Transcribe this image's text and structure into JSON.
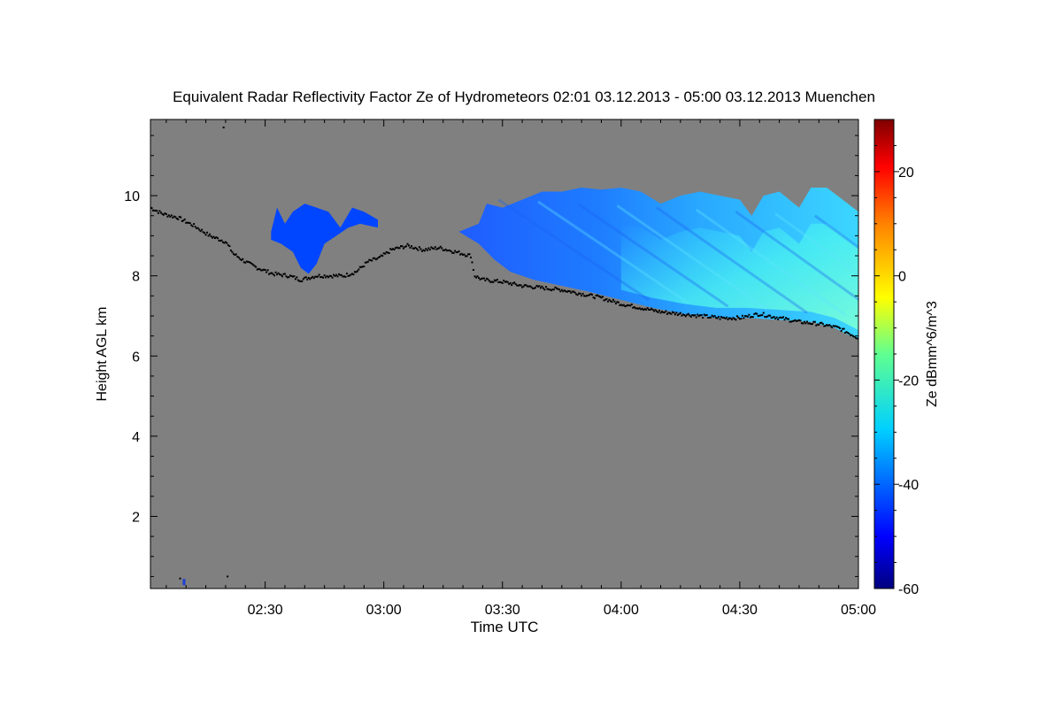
{
  "chart_data": {
    "type": "heatmap",
    "title": "Equivalent Radar Reflectivity Factor Ze of Hydrometeors   02:01 03.12.2013 - 05:00 03.12.2013 Muenchen",
    "xlabel": "Time UTC",
    "ylabel": "Height AGL km",
    "xlim_minutes_utc": [
      121,
      300
    ],
    "ylim_km": [
      0.2,
      11.9
    ],
    "x_ticks": [
      {
        "minutes": 150,
        "label": "02:30"
      },
      {
        "minutes": 180,
        "label": "03:00"
      },
      {
        "minutes": 210,
        "label": "03:30"
      },
      {
        "minutes": 240,
        "label": "04:00"
      },
      {
        "minutes": 270,
        "label": "04:30"
      },
      {
        "minutes": 300,
        "label": "05:00"
      }
    ],
    "y_ticks": [
      {
        "value": 2,
        "label": "2"
      },
      {
        "value": 4,
        "label": "4"
      },
      {
        "value": 6,
        "label": "6"
      },
      {
        "value": 8,
        "label": "8"
      },
      {
        "value": 10,
        "label": "10"
      }
    ],
    "background_color": "#808080",
    "colorbar": {
      "label": "Ze dBmm^6/m^3",
      "range": [
        -60,
        30
      ],
      "ticks": [
        {
          "value": 20,
          "label": "20"
        },
        {
          "value": 0,
          "label": "0"
        },
        {
          "value": -20,
          "label": "-20"
        },
        {
          "value": -40,
          "label": "-40"
        },
        {
          "value": -60,
          "label": "-60"
        }
      ]
    },
    "cloud_regions": [
      {
        "name": "early-cloud-patch",
        "start_min": 151.5,
        "end_min": 178.5,
        "top_km": [
          [
            151.5,
            9.1
          ],
          [
            153,
            9.7
          ],
          [
            155,
            9.3
          ],
          [
            157,
            9.6
          ],
          [
            160,
            9.8
          ],
          [
            163,
            9.7
          ],
          [
            166,
            9.6
          ],
          [
            169,
            9.2
          ],
          [
            172,
            9.7
          ],
          [
            175,
            9.6
          ],
          [
            178.5,
            9.4
          ]
        ],
        "base_km": [
          [
            151.5,
            8.9
          ],
          [
            154,
            8.8
          ],
          [
            157,
            8.6
          ],
          [
            159,
            8.2
          ],
          [
            161,
            8.05
          ],
          [
            163,
            8.3
          ],
          [
            165,
            8.8
          ],
          [
            168,
            9.0
          ],
          [
            171,
            9.2
          ],
          [
            174,
            9.3
          ],
          [
            178.5,
            9.2
          ]
        ],
        "ze_dbz": -43
      },
      {
        "name": "main-cirrus-band",
        "start_min": 199,
        "end_min": 300,
        "top_km": [
          [
            199,
            9.1
          ],
          [
            204,
            9.3
          ],
          [
            206,
            9.8
          ],
          [
            210,
            9.7
          ],
          [
            215,
            9.9
          ],
          [
            220,
            10.1
          ],
          [
            225,
            10.1
          ],
          [
            230,
            10.2
          ],
          [
            235,
            10.15
          ],
          [
            240,
            10.2
          ],
          [
            245,
            10.1
          ],
          [
            250,
            9.8
          ],
          [
            255,
            10.0
          ],
          [
            260,
            10.1
          ],
          [
            265,
            10.0
          ],
          [
            270,
            9.9
          ],
          [
            273,
            9.5
          ],
          [
            276,
            10.0
          ],
          [
            280,
            10.1
          ],
          [
            285,
            9.7
          ],
          [
            288,
            10.2
          ],
          [
            292,
            10.2
          ],
          [
            296,
            9.9
          ],
          [
            300,
            9.6
          ]
        ],
        "base_km": [
          [
            199,
            9.1
          ],
          [
            204,
            8.8
          ],
          [
            208,
            8.4
          ],
          [
            212,
            8.1
          ],
          [
            218,
            7.9
          ],
          [
            225,
            7.75
          ],
          [
            232,
            7.6
          ],
          [
            240,
            7.4
          ],
          [
            248,
            7.2
          ],
          [
            256,
            7.05
          ],
          [
            264,
            6.95
          ],
          [
            272,
            6.95
          ],
          [
            280,
            6.9
          ],
          [
            288,
            6.85
          ],
          [
            294,
            6.7
          ],
          [
            300,
            6.4
          ]
        ],
        "core": {
          "start_min": 240,
          "end_min": 300,
          "ze_dbz_peak": -25
        },
        "ze_dbz": -42
      }
    ],
    "cloud_top_detection_km": [
      [
        121,
        9.7
      ],
      [
        124,
        9.55
      ],
      [
        128,
        9.45
      ],
      [
        132,
        9.25
      ],
      [
        136,
        9.0
      ],
      [
        140,
        8.85
      ],
      [
        142,
        8.55
      ],
      [
        145,
        8.35
      ],
      [
        148,
        8.2
      ],
      [
        152,
        8.05
      ],
      [
        156,
        8.0
      ],
      [
        159,
        7.9
      ],
      [
        163,
        8.0
      ],
      [
        167,
        8.0
      ],
      [
        170,
        8.0
      ],
      [
        173,
        8.1
      ],
      [
        176,
        8.35
      ],
      [
        179,
        8.45
      ],
      [
        182,
        8.65
      ],
      [
        186,
        8.75
      ],
      [
        190,
        8.65
      ],
      [
        194,
        8.7
      ],
      [
        198,
        8.6
      ],
      [
        202,
        8.5
      ],
      [
        203,
        8.0
      ],
      [
        205,
        7.9
      ],
      [
        210,
        7.85
      ],
      [
        215,
        7.75
      ],
      [
        220,
        7.7
      ],
      [
        225,
        7.65
      ],
      [
        230,
        7.55
      ],
      [
        235,
        7.45
      ],
      [
        240,
        7.3
      ],
      [
        245,
        7.2
      ],
      [
        250,
        7.1
      ],
      [
        255,
        7.05
      ],
      [
        260,
        7.0
      ],
      [
        265,
        6.95
      ],
      [
        270,
        6.95
      ],
      [
        275,
        7.05
      ],
      [
        280,
        6.95
      ],
      [
        285,
        6.85
      ],
      [
        290,
        6.8
      ],
      [
        295,
        6.7
      ],
      [
        300,
        6.45
      ]
    ],
    "isolated_points": [
      {
        "min": 139.5,
        "km": 11.7,
        "kind": "black"
      },
      {
        "min": 140.5,
        "km": 0.5,
        "kind": "black"
      },
      {
        "min": 128.5,
        "km": 0.45,
        "kind": "black"
      },
      {
        "min": 129.5,
        "km": 0.35,
        "kind": "blue"
      }
    ]
  }
}
